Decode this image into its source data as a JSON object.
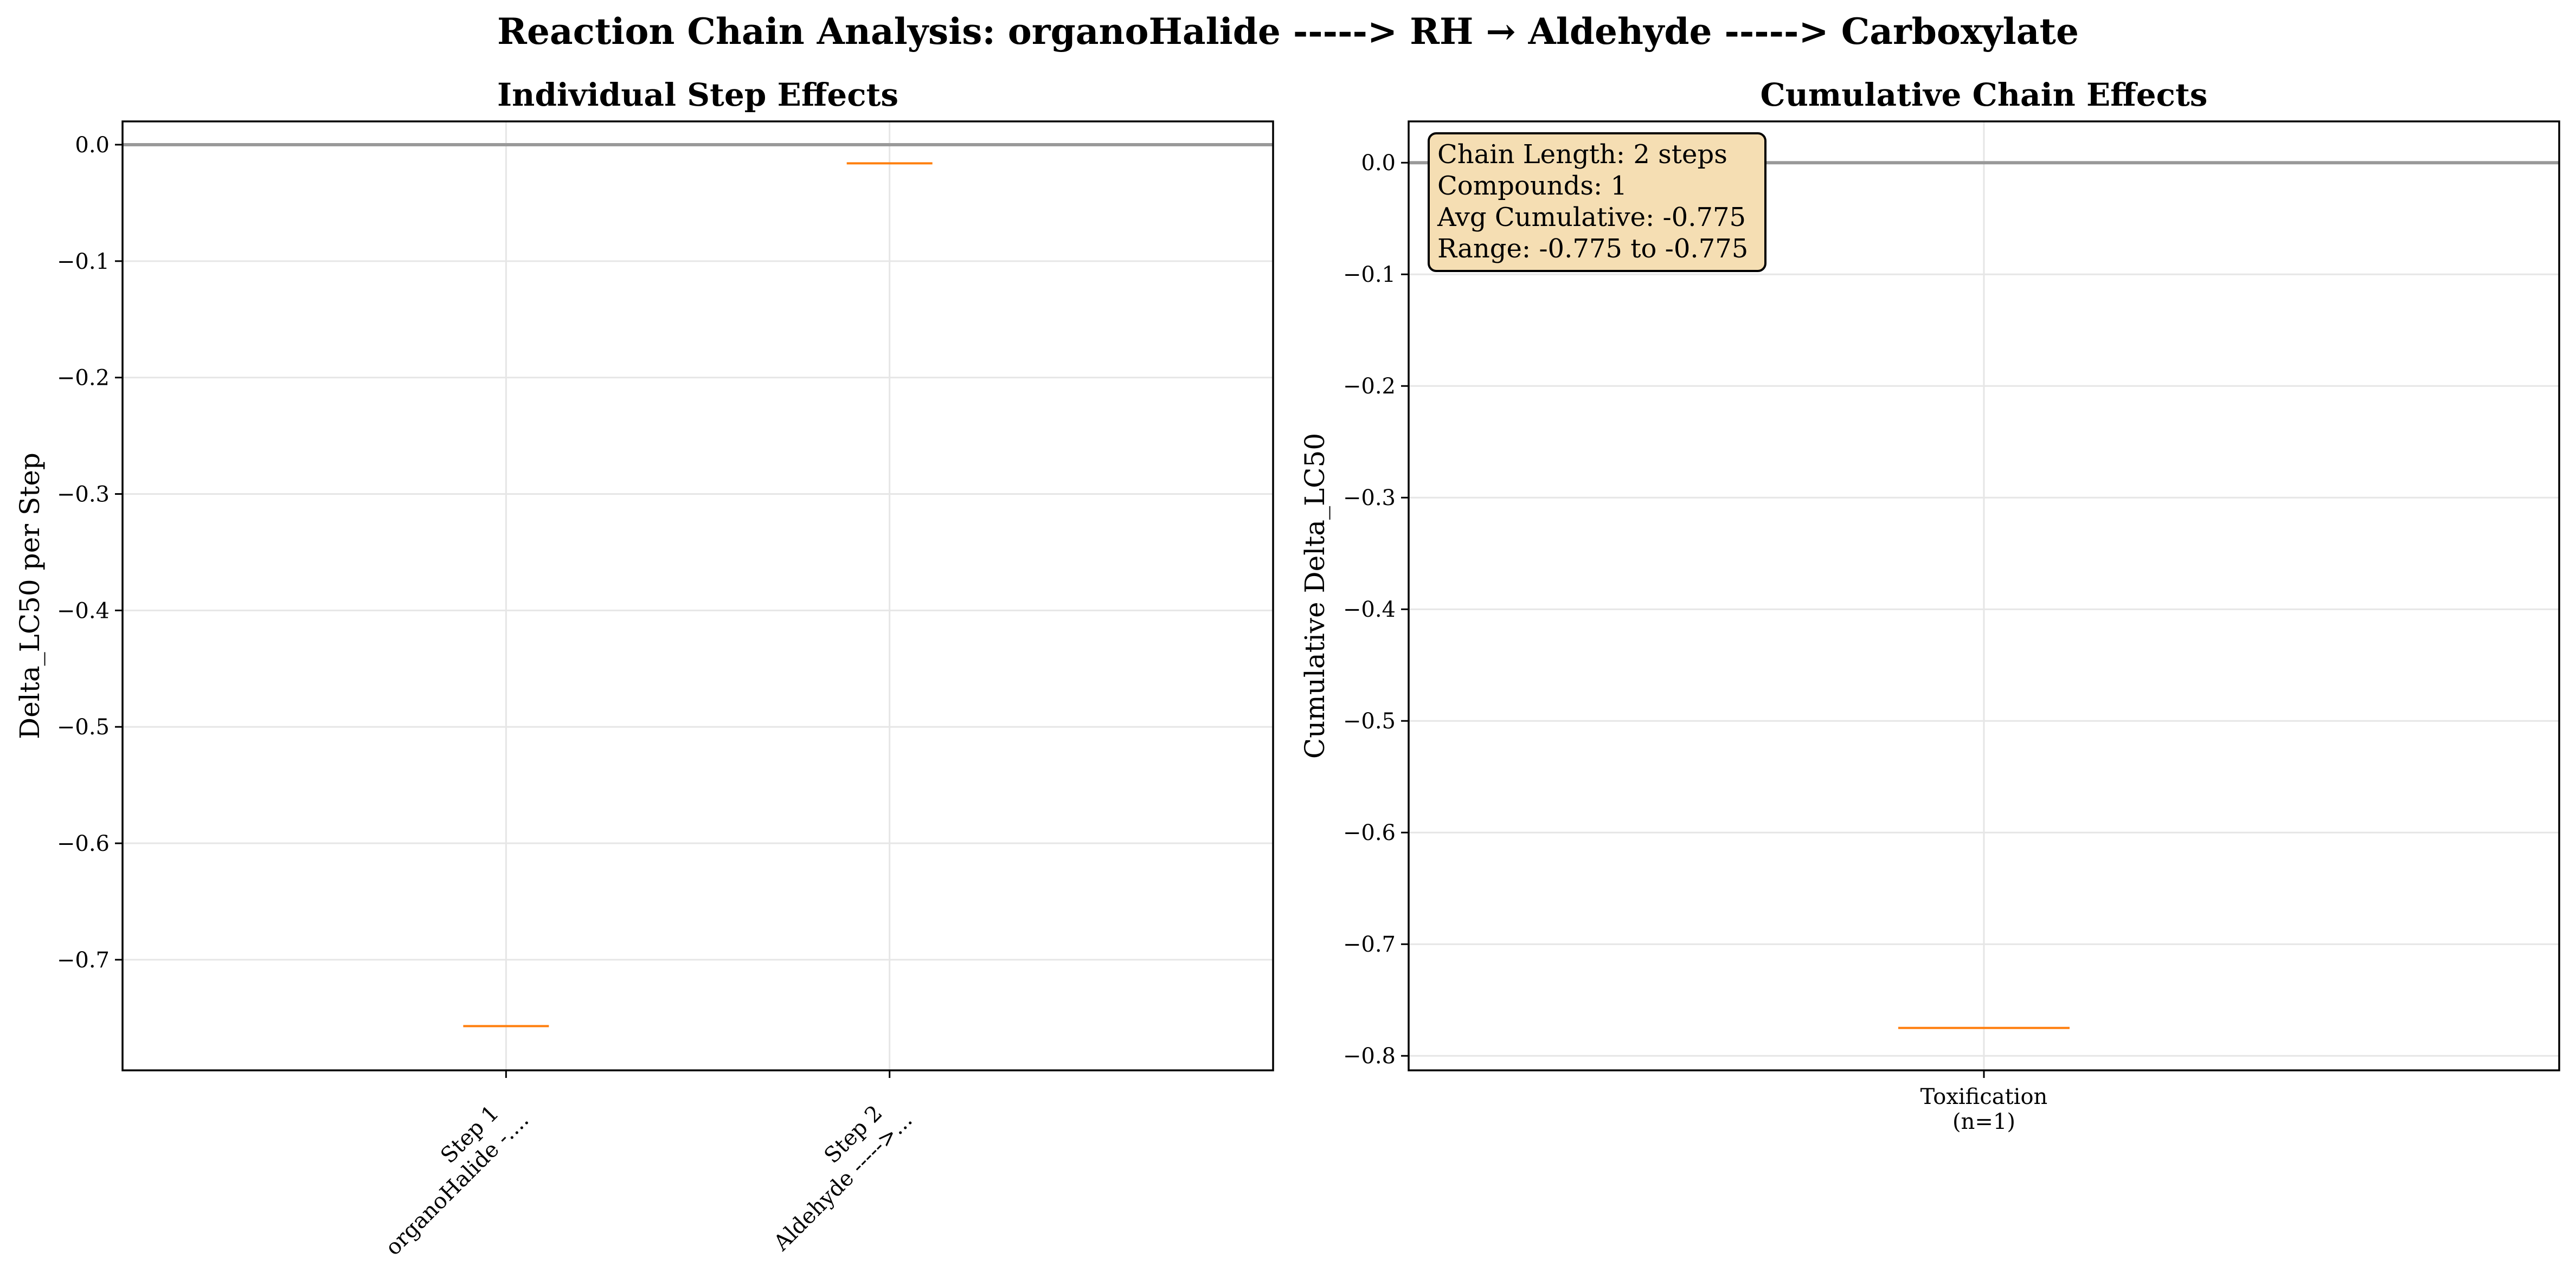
{
  "figure": {
    "title": "Reaction Chain Analysis: organoHalide -----> RH → Aldehyde -----> Carboxylate"
  },
  "chart_data": [
    {
      "type": "box",
      "title": "Individual Step Effects",
      "xlabel": "",
      "ylabel": "Delta_LC50 per Step",
      "categories": [
        {
          "line1": "Step 1",
          "line2": "organoHalide -...."
        },
        {
          "line1": "Step 2",
          "line2": "Aldehyde ----->..."
        }
      ],
      "values": [
        -0.757,
        -0.016
      ],
      "ylim": [
        -0.795,
        0.02
      ],
      "yticks": [
        0.0,
        -0.1,
        -0.2,
        -0.3,
        -0.4,
        -0.5,
        -0.6,
        -0.7
      ],
      "ytick_labels": [
        "0.0",
        "−0.1",
        "−0.2",
        "−0.3",
        "−0.4",
        "−0.5",
        "−0.6",
        "−0.7"
      ],
      "reference_line": 0.0,
      "grid": true,
      "colors": {
        "median": "#ff7f0e",
        "reference": "#999999",
        "grid": "#e6e6e6"
      }
    },
    {
      "type": "box",
      "title": "Cumulative Chain Effects",
      "xlabel": "",
      "ylabel": "Cumulative Delta_LC50",
      "categories": [
        {
          "line1": "Toxification",
          "line2": "(n=1)"
        }
      ],
      "values": [
        -0.775
      ],
      "ylim": [
        -0.813,
        0.037
      ],
      "yticks": [
        0.0,
        -0.1,
        -0.2,
        -0.3,
        -0.4,
        -0.5,
        -0.6,
        -0.7,
        -0.8
      ],
      "ytick_labels": [
        "0.0",
        "−0.1",
        "−0.2",
        "−0.3",
        "−0.4",
        "−0.5",
        "−0.6",
        "−0.7",
        "−0.8"
      ],
      "reference_line": 0.0,
      "grid": true,
      "colors": {
        "median": "#ff7f0e",
        "reference": "#999999",
        "grid": "#e6e6e6",
        "annotation_bg": "#f5deb3"
      },
      "annotation": [
        "Chain Length: 2 steps",
        "Compounds: 1",
        "Avg Cumulative: -0.775",
        "Range: -0.775 to -0.775"
      ]
    }
  ]
}
